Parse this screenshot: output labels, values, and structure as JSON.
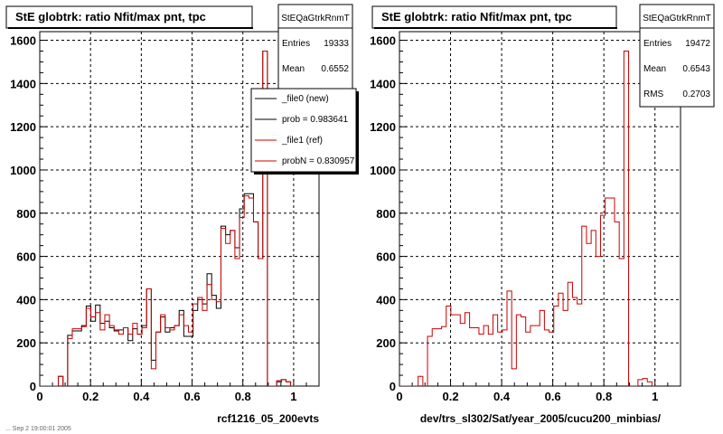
{
  "footer_text": "... Sep 2 19:00:01 2005",
  "chart_data": [
    {
      "type": "histogram",
      "title": "StE globtrk: ratio Nfit/max pnt, tpc",
      "xlabel": "rcf1216_05_200evts",
      "ylabel": "",
      "xlim": [
        0,
        1.1
      ],
      "ylim": [
        0,
        1640
      ],
      "grid": true,
      "x_ticks": [
        "0",
        "0.2",
        "0.4",
        "0.6",
        "0.8",
        "1"
      ],
      "y_ticks": [
        "0",
        "200",
        "400",
        "600",
        "800",
        "1000",
        "1200",
        "1400",
        "1600"
      ],
      "stats": {
        "name": "StEQaGtrkRnmT",
        "rows": [
          {
            "label": "Entries",
            "value": "19333"
          },
          {
            "label": "Mean",
            "value": "0.6552"
          }
        ]
      },
      "legend": {
        "placement": "top-right",
        "entries": [
          {
            "label": "_file0 (new)",
            "color": "#000000"
          },
          {
            "label": "prob = 0.983641",
            "color": "#000000"
          },
          {
            "label": "_file1 (ref)",
            "color": "#cc0000"
          },
          {
            "label": "probN = 0.830957",
            "color": "#cc0000"
          }
        ]
      },
      "bin_edges_start": 0.0,
      "bin_width": 0.0183,
      "series": [
        {
          "name": "_file0 (new)",
          "color": "#000000",
          "values": [
            0,
            0,
            0,
            0,
            45,
            0,
            235,
            255,
            255,
            280,
            370,
            300,
            375,
            290,
            300,
            270,
            255,
            260,
            270,
            210,
            265,
            240,
            280,
            450,
            120,
            250,
            320,
            250,
            270,
            280,
            350,
            230,
            230,
            350,
            400,
            380,
            520,
            420,
            360,
            740,
            700,
            720,
            640,
            820,
            890,
            890,
            760,
            590,
            1550,
            0,
            0,
            20,
            30,
            20,
            0
          ]
        },
        {
          "name": "_file1 (ref)",
          "color": "#cc0000",
          "values": [
            0,
            0,
            0,
            0,
            45,
            0,
            220,
            265,
            265,
            275,
            360,
            320,
            340,
            260,
            330,
            280,
            260,
            240,
            270,
            240,
            290,
            240,
            270,
            450,
            80,
            250,
            330,
            270,
            260,
            280,
            330,
            280,
            250,
            380,
            410,
            350,
            470,
            400,
            390,
            730,
            660,
            720,
            590,
            780,
            880,
            870,
            760,
            590,
            1550,
            0,
            0,
            25,
            30,
            20,
            0
          ]
        }
      ]
    },
    {
      "type": "histogram",
      "title": "StE globtrk: ratio Nfit/max pnt, tpc",
      "xlabel": "dev/trs_sl302/Sat/year_2005/cucu200_minbias/",
      "ylabel": "",
      "xlim": [
        0,
        1.1
      ],
      "ylim": [
        0,
        1640
      ],
      "grid": true,
      "x_ticks": [
        "0",
        "0.2",
        "0.4",
        "0.6",
        "0.8",
        "1"
      ],
      "y_ticks": [
        "0",
        "200",
        "400",
        "600",
        "800",
        "1000",
        "1200",
        "1400",
        "1600"
      ],
      "stats": {
        "name": "StEQaGtrkRnmT",
        "rows": [
          {
            "label": "Entries",
            "value": "19472"
          },
          {
            "label": "Mean",
            "value": "0.6543"
          },
          {
            "label": "RMS",
            "value": "0.2703"
          }
        ]
      },
      "bin_edges_start": 0.0,
      "bin_width": 0.0183,
      "series": [
        {
          "name": "",
          "color": "#cc0000",
          "values": [
            0,
            0,
            0,
            0,
            45,
            0,
            230,
            265,
            265,
            275,
            370,
            330,
            330,
            290,
            340,
            270,
            270,
            240,
            280,
            240,
            330,
            250,
            260,
            440,
            80,
            330,
            320,
            250,
            280,
            280,
            350,
            260,
            250,
            370,
            430,
            350,
            480,
            410,
            380,
            740,
            660,
            720,
            600,
            790,
            870,
            870,
            760,
            590,
            1550,
            0,
            0,
            30,
            35,
            20,
            0
          ]
        }
      ]
    }
  ]
}
